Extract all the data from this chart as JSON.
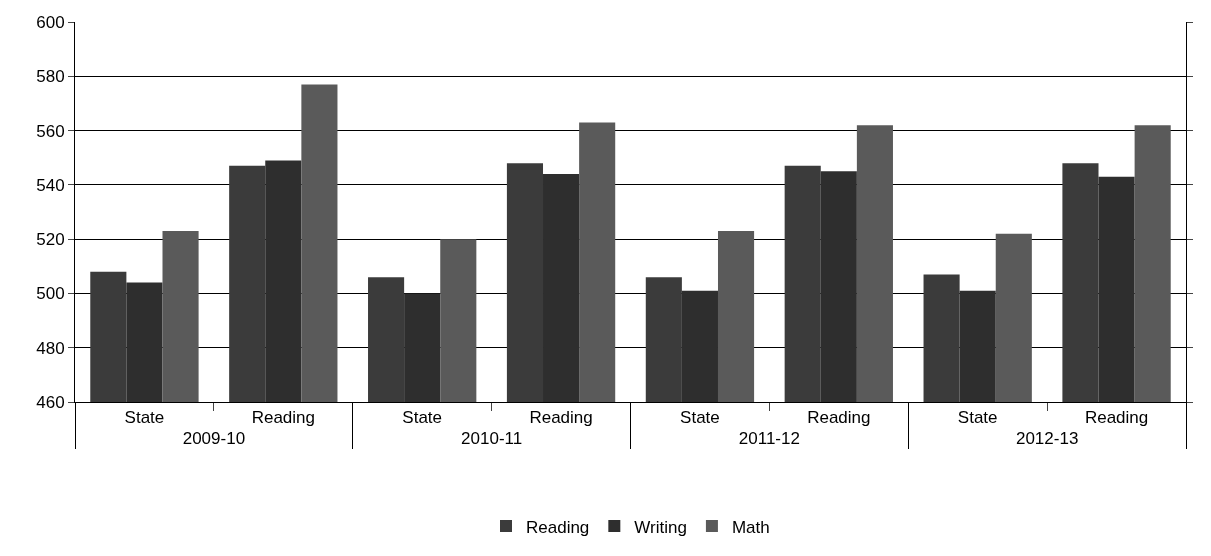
{
  "chart_data": {
    "type": "bar",
    "categories": [
      "State",
      "Reading",
      "State",
      "Reading",
      "State",
      "Reading",
      "State",
      "Reading"
    ],
    "annotations": [
      "2009-10",
      "2010-11",
      "2011-12",
      "2012-13"
    ],
    "series": [
      {
        "name": "Reading",
        "color": "#3b3b3b",
        "values": [
          508,
          547,
          506,
          548,
          506,
          547,
          507,
          548
        ]
      },
      {
        "name": "Writing",
        "color": "#2e2e2e",
        "values": [
          504,
          549,
          500,
          544,
          501,
          545,
          501,
          543
        ]
      },
      {
        "name": "Math",
        "color": "#5a5a5a",
        "values": [
          523,
          577,
          520,
          563,
          523,
          562,
          522,
          562
        ]
      }
    ],
    "ylim": [
      460,
      600
    ],
    "yticks": [
      460,
      480,
      500,
      520,
      540,
      560,
      580,
      600
    ],
    "grid": "y",
    "legend": "bottom"
  }
}
